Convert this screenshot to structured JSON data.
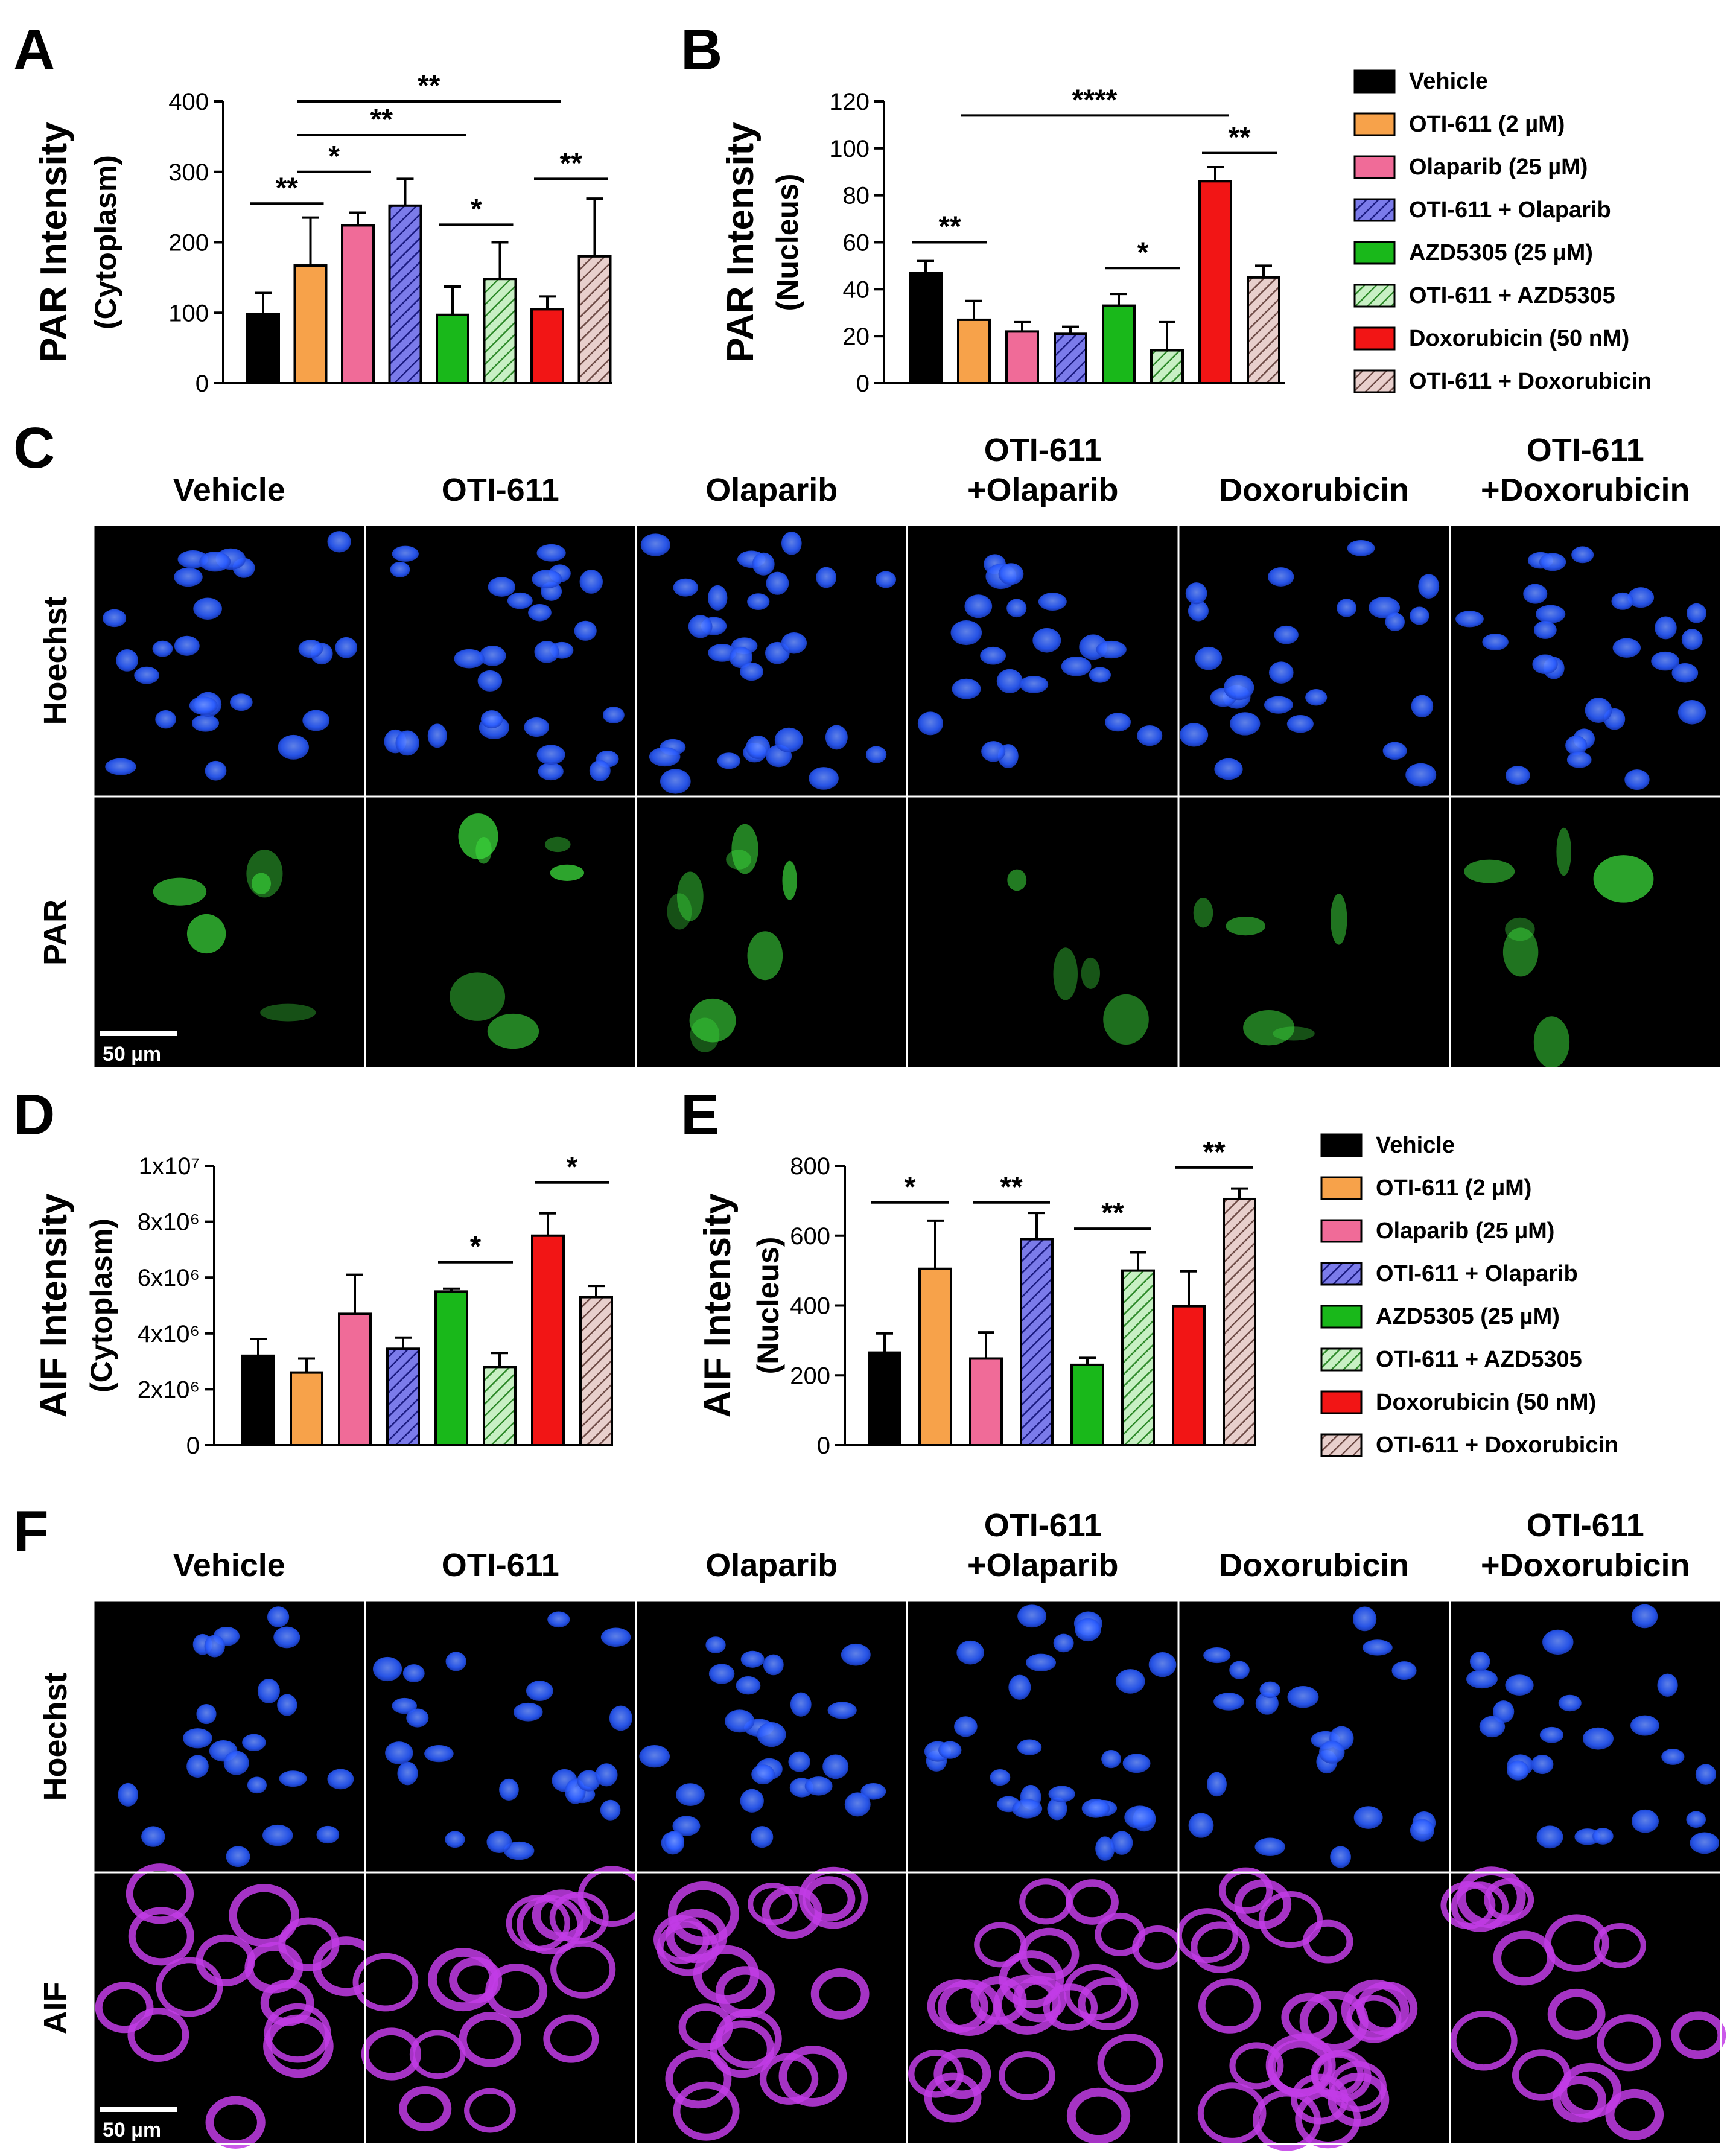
{
  "panel_letters": [
    "A",
    "B",
    "C",
    "D",
    "E",
    "F"
  ],
  "colors": {
    "vehicle": "#000000",
    "oti611": "#f7a24a",
    "olaparib": "#f06b98",
    "oti_olaparib": "#7b7bea",
    "azd5305": "#19b81a",
    "oti_azd5305": "#9ee09a",
    "doxorubicin": "#f21515",
    "oti_doxorubicin": "#c9a3a0",
    "hoechst": "#2a5cff",
    "par": "#3cdc3c",
    "aif": "#c23ce6"
  },
  "legend": {
    "items": [
      {
        "label": "Vehicle",
        "color": "#000000",
        "hatch": false
      },
      {
        "label": "OTI-611 (2 µM)",
        "color": "#f7a24a",
        "hatch": false
      },
      {
        "label": "Olaparib (25 µM)",
        "color": "#f06b98",
        "hatch": false
      },
      {
        "label": "OTI-611 + Olaparib",
        "color": "#7b7bea",
        "hatch": true
      },
      {
        "label": "AZD5305 (25 µM)",
        "color": "#19b81a",
        "hatch": false
      },
      {
        "label": "OTI-611 + AZD5305",
        "color": "#9ee09a",
        "hatch": true
      },
      {
        "label": "Doxorubicin (50 nM)",
        "color": "#f21515",
        "hatch": false
      },
      {
        "label": "OTI-611 + Doxorubicin",
        "color": "#c9a3a0",
        "hatch": true
      }
    ]
  },
  "chart_data": [
    {
      "panel": "A",
      "type": "bar",
      "ylabel_main": "PAR Intensity",
      "ylabel_sub": "(Cytoplasm)",
      "ylim": [
        0,
        400
      ],
      "yticks": [
        "0",
        "100",
        "200",
        "300",
        "400"
      ],
      "ytick_values": [
        0,
        100,
        200,
        300,
        400
      ],
      "categories": [
        "Vehicle",
        "OTI-611 (2 µM)",
        "Olaparib (25 µM)",
        "OTI-611 + Olaparib",
        "AZD5305 (25 µM)",
        "OTI-611 + AZD5305",
        "Doxorubicin (50 nM)",
        "OTI-611 + Doxorubicin"
      ],
      "values": [
        98,
        167,
        224,
        252,
        97,
        148,
        105,
        180
      ],
      "errors": [
        30,
        68,
        18,
        38,
        40,
        52,
        18,
        82
      ],
      "significance": [
        {
          "from": 0,
          "to": 1,
          "y": 255,
          "label": "**"
        },
        {
          "from": 1,
          "to": 2,
          "y": 300,
          "label": "*"
        },
        {
          "from": 1,
          "to": 4,
          "y": 352,
          "label": "**"
        },
        {
          "from": 1,
          "to": 6,
          "y": 400,
          "label": "**"
        },
        {
          "from": 4,
          "to": 5,
          "y": 225,
          "label": "*"
        },
        {
          "from": 6,
          "to": 7,
          "y": 290,
          "label": "**"
        }
      ]
    },
    {
      "panel": "B",
      "type": "bar",
      "ylabel_main": "PAR Intensity",
      "ylabel_sub": "(Nucleus)",
      "ylim": [
        0,
        120
      ],
      "yticks": [
        "0",
        "20",
        "40",
        "60",
        "80",
        "100",
        "120"
      ],
      "ytick_values": [
        0,
        20,
        40,
        60,
        80,
        100,
        120
      ],
      "categories": [
        "Vehicle",
        "OTI-611 (2 µM)",
        "Olaparib (25 µM)",
        "OTI-611 + Olaparib",
        "AZD5305 (25 µM)",
        "OTI-611 + AZD5305",
        "Doxorubicin (50 nM)",
        "OTI-611 + Doxorubicin"
      ],
      "values": [
        47,
        27,
        22,
        21,
        33,
        14,
        86,
        45
      ],
      "errors": [
        5,
        8,
        4,
        3,
        5,
        12,
        6,
        5
      ],
      "significance": [
        {
          "from": 0,
          "to": 1,
          "y": 60,
          "label": "**"
        },
        {
          "from": 1,
          "to": 6,
          "y": 114,
          "label": "****"
        },
        {
          "from": 4,
          "to": 5,
          "y": 49,
          "label": "*"
        },
        {
          "from": 6,
          "to": 7,
          "y": 98,
          "label": "**"
        }
      ]
    },
    {
      "panel": "D",
      "type": "bar",
      "ylabel_main": "AIF Intensity",
      "ylabel_sub": "(Cytoplasm)",
      "ylim": [
        0,
        10000000
      ],
      "yticks": [
        "0",
        "2x10⁶",
        "4x10⁶",
        "6x10⁶",
        "8x10⁶",
        "1x10⁷"
      ],
      "ytick_values": [
        0,
        2000000,
        4000000,
        6000000,
        8000000,
        10000000
      ],
      "categories": [
        "Vehicle",
        "OTI-611 (2 µM)",
        "Olaparib (25 µM)",
        "OTI-611 + Olaparib",
        "AZD5305 (25 µM)",
        "OTI-611 + AZD5305",
        "Doxorubicin (50 nM)",
        "OTI-611 + Doxorubicin"
      ],
      "values": [
        3200000,
        2600000,
        4700000,
        3450000,
        5500000,
        2800000,
        7500000,
        5300000
      ],
      "errors": [
        600000,
        500000,
        1400000,
        400000,
        100000,
        500000,
        800000,
        400000
      ],
      "significance": [
        {
          "from": 4,
          "to": 5,
          "y": 6550000,
          "label": "*"
        },
        {
          "from": 6,
          "to": 7,
          "y": 9400000,
          "label": "*"
        }
      ]
    },
    {
      "panel": "E",
      "type": "bar",
      "ylabel_main": "AIF Intensity",
      "ylabel_sub": "(Nucleus)",
      "ylim": [
        0,
        800
      ],
      "yticks": [
        "0",
        "200",
        "400",
        "600",
        "800"
      ],
      "ytick_values": [
        0,
        200,
        400,
        600,
        800
      ],
      "categories": [
        "Vehicle",
        "OTI-611 (2 µM)",
        "Olaparib (25 µM)",
        "OTI-611 + Olaparib",
        "AZD5305 (25 µM)",
        "OTI-611 + AZD5305",
        "Doxorubicin (50 nM)",
        "OTI-611 + Doxorubicin"
      ],
      "values": [
        265,
        505,
        248,
        590,
        230,
        500,
        398,
        705
      ],
      "errors": [
        55,
        138,
        75,
        75,
        20,
        52,
        100,
        30
      ],
      "significance": [
        {
          "from": 0,
          "to": 1,
          "y": 695,
          "label": "*"
        },
        {
          "from": 2,
          "to": 3,
          "y": 695,
          "label": "**"
        },
        {
          "from": 4,
          "to": 5,
          "y": 620,
          "label": "**"
        },
        {
          "from": 6,
          "to": 7,
          "y": 795,
          "label": "**"
        }
      ]
    }
  ],
  "micrographs": {
    "C": {
      "columns": [
        "Vehicle",
        "OTI-611",
        "Olaparib",
        [
          "OTI-611",
          "+Olaparib"
        ],
        "Doxorubicin",
        [
          "OTI-611",
          "+Doxorubicin"
        ]
      ],
      "rows": [
        "Hoechst",
        "PAR"
      ],
      "scale_bar": "50 µm"
    },
    "F": {
      "columns": [
        "Vehicle",
        "OTI-611",
        "Olaparib",
        [
          "OTI-611",
          "+Olaparib"
        ],
        "Doxorubicin",
        [
          "OTI-611",
          "+Doxorubicin"
        ]
      ],
      "rows": [
        "Hoechst",
        "AIF"
      ],
      "scale_bar": "50 µm"
    }
  }
}
